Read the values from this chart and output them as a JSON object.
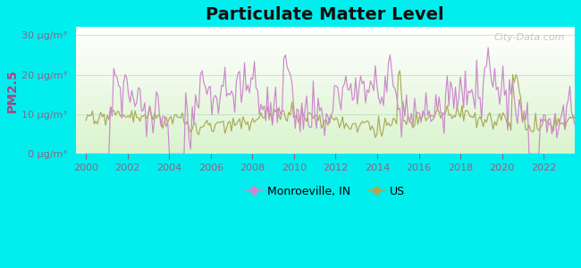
{
  "title": "Particulate Matter Level",
  "ylabel": "PM2.5",
  "bg_outer": "#00EEEE",
  "bg_plot_bottom": "#cceeaa",
  "bg_plot_top": "#eefff0",
  "ylim": [
    0,
    32
  ],
  "yticks": [
    0,
    10,
    20,
    30
  ],
  "ytick_labels": [
    "0 μg/m³",
    "10 μg/m³",
    "20 μg/m³",
    "30 μg/m³"
  ],
  "xticks": [
    2000,
    2002,
    2004,
    2006,
    2008,
    2010,
    2012,
    2014,
    2016,
    2018,
    2020,
    2022
  ],
  "xlim": [
    1999.5,
    2023.5
  ],
  "color_monroeville": "#cc88cc",
  "color_us": "#aaaa55",
  "legend_label_monroeville": "Monroeville, IN",
  "legend_label_us": "US",
  "watermark": "City-Data.com",
  "ylabel_color": "#aa4488",
  "tick_label_color": "#886688",
  "title_fontsize": 14,
  "ylabel_fontsize": 10,
  "tick_fontsize": 8
}
